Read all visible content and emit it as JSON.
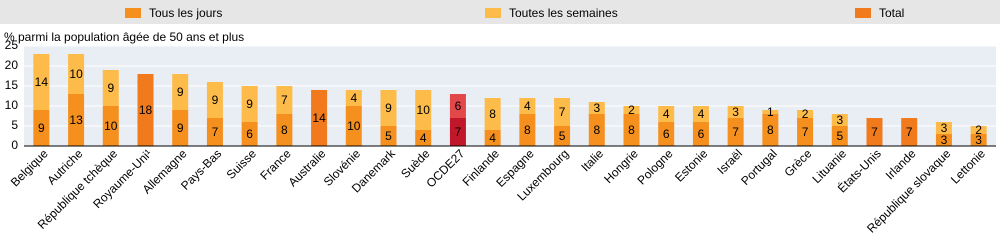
{
  "chart_data": {
    "type": "stacked-bar",
    "y_label": "% parmi la population âgée de 50 ans et plus",
    "categories": [
      "Belgique",
      "Autriche",
      "République tchèque",
      "Royaume-Uni¹",
      "Allemagne",
      "Pays-Bas",
      "Suisse",
      "France",
      "Australie",
      "Slovénie",
      "Danemark",
      "Suède",
      "OCDE27",
      "Finlande",
      "Espagne",
      "Luxembourg",
      "Italie",
      "Hongrie",
      "Pologne",
      "Estonie",
      "Israël",
      "Portugal",
      "Grèce",
      "Lituanie",
      "États-Unis",
      "Irlande",
      "République slovaque",
      "Lettonie"
    ],
    "series": [
      {
        "name": "Tous les jours",
        "color": "#f5901f",
        "highlight_color": "#c0182a",
        "values": [
          9,
          13,
          10,
          null,
          9,
          7,
          6,
          8,
          null,
          10,
          5,
          4,
          7,
          4,
          8,
          5,
          8,
          8,
          6,
          6,
          7,
          8,
          7,
          5,
          null,
          null,
          3,
          3
        ]
      },
      {
        "name": "Toutes les semaines",
        "color": "#fdbb4a",
        "highlight_color": "#e2474a",
        "values": [
          14,
          10,
          9,
          null,
          9,
          9,
          9,
          7,
          null,
          4,
          9,
          10,
          6,
          8,
          4,
          7,
          3,
          2,
          4,
          4,
          3,
          1,
          2,
          3,
          null,
          null,
          3,
          2
        ]
      },
      {
        "name": "Total",
        "color": "#f07a1c",
        "highlight_color": "#c0182a",
        "values": [
          null,
          null,
          null,
          18,
          null,
          null,
          null,
          null,
          14,
          null,
          null,
          null,
          null,
          null,
          null,
          null,
          null,
          null,
          null,
          null,
          null,
          null,
          null,
          null,
          7,
          7,
          null,
          null
        ]
      }
    ],
    "highlight": "OCDE27",
    "ylim": [
      0,
      25
    ],
    "yticks": [
      0,
      5,
      10,
      15,
      20,
      25
    ],
    "grid": true
  }
}
